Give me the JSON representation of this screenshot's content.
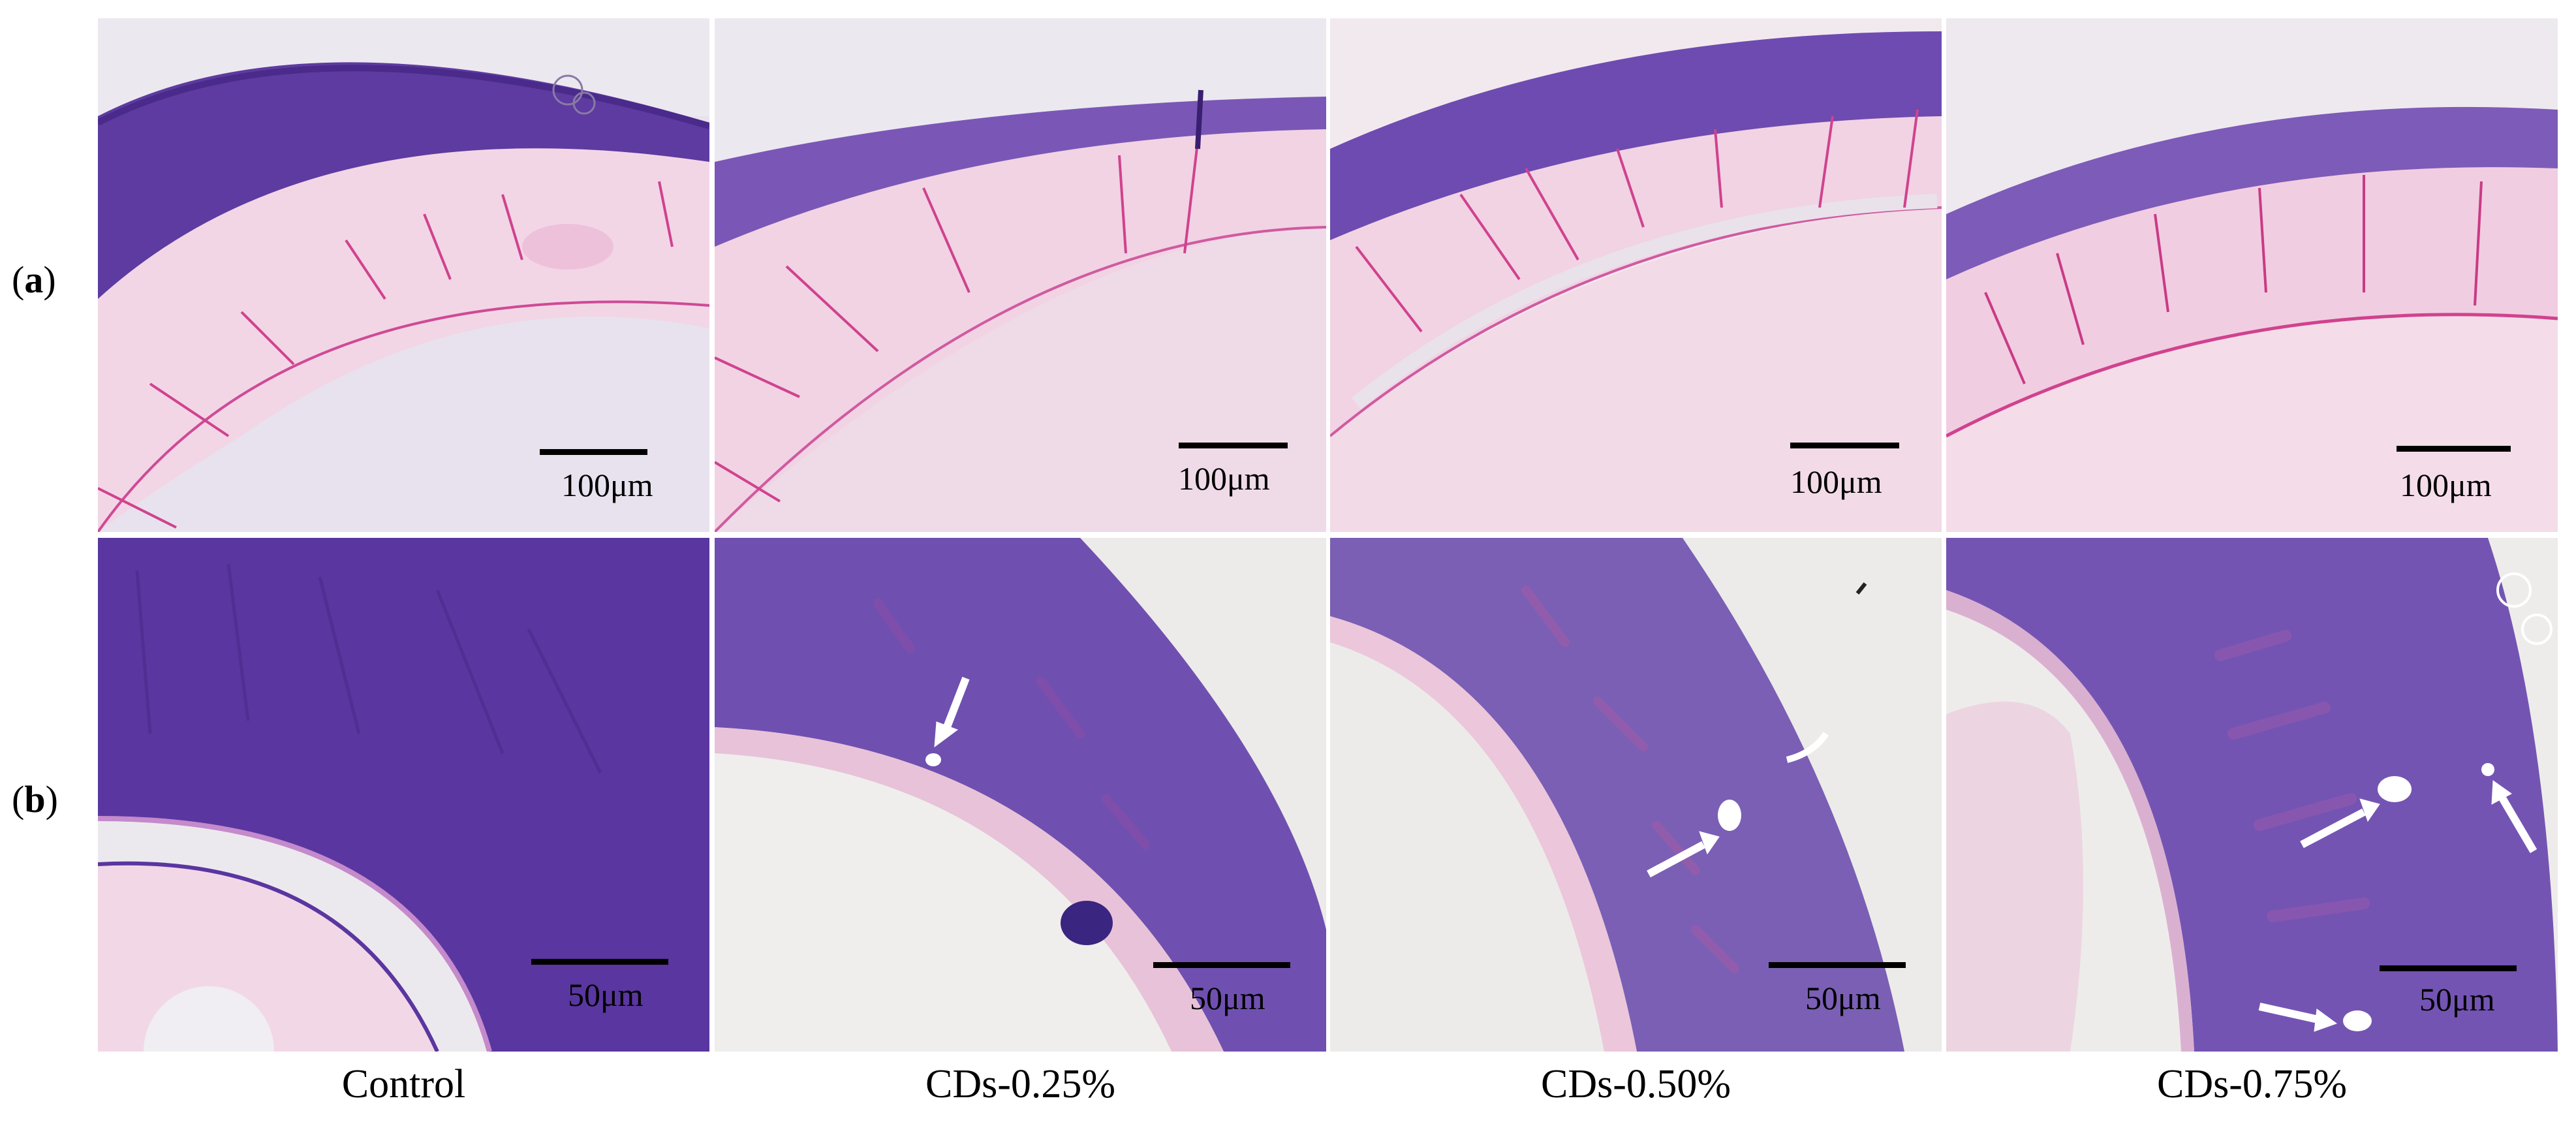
{
  "row_labels": {
    "a": "a",
    "b": "b"
  },
  "scale_labels": {
    "top": "100μm",
    "bottom": "50μm"
  },
  "columns": [
    "Control",
    "CDs-0.25%",
    "CDs-0.50%",
    "CDs-0.75%"
  ],
  "colors": {
    "tissue_dark": "#5b3a9e",
    "tissue_purple": "#7a56b8",
    "pink_layer": "#f0cfe2",
    "pink_line": "#d0428e",
    "lumen_pink": "#f4d9e8",
    "background": "#eae7ee",
    "arrow": "#ffffff"
  }
}
